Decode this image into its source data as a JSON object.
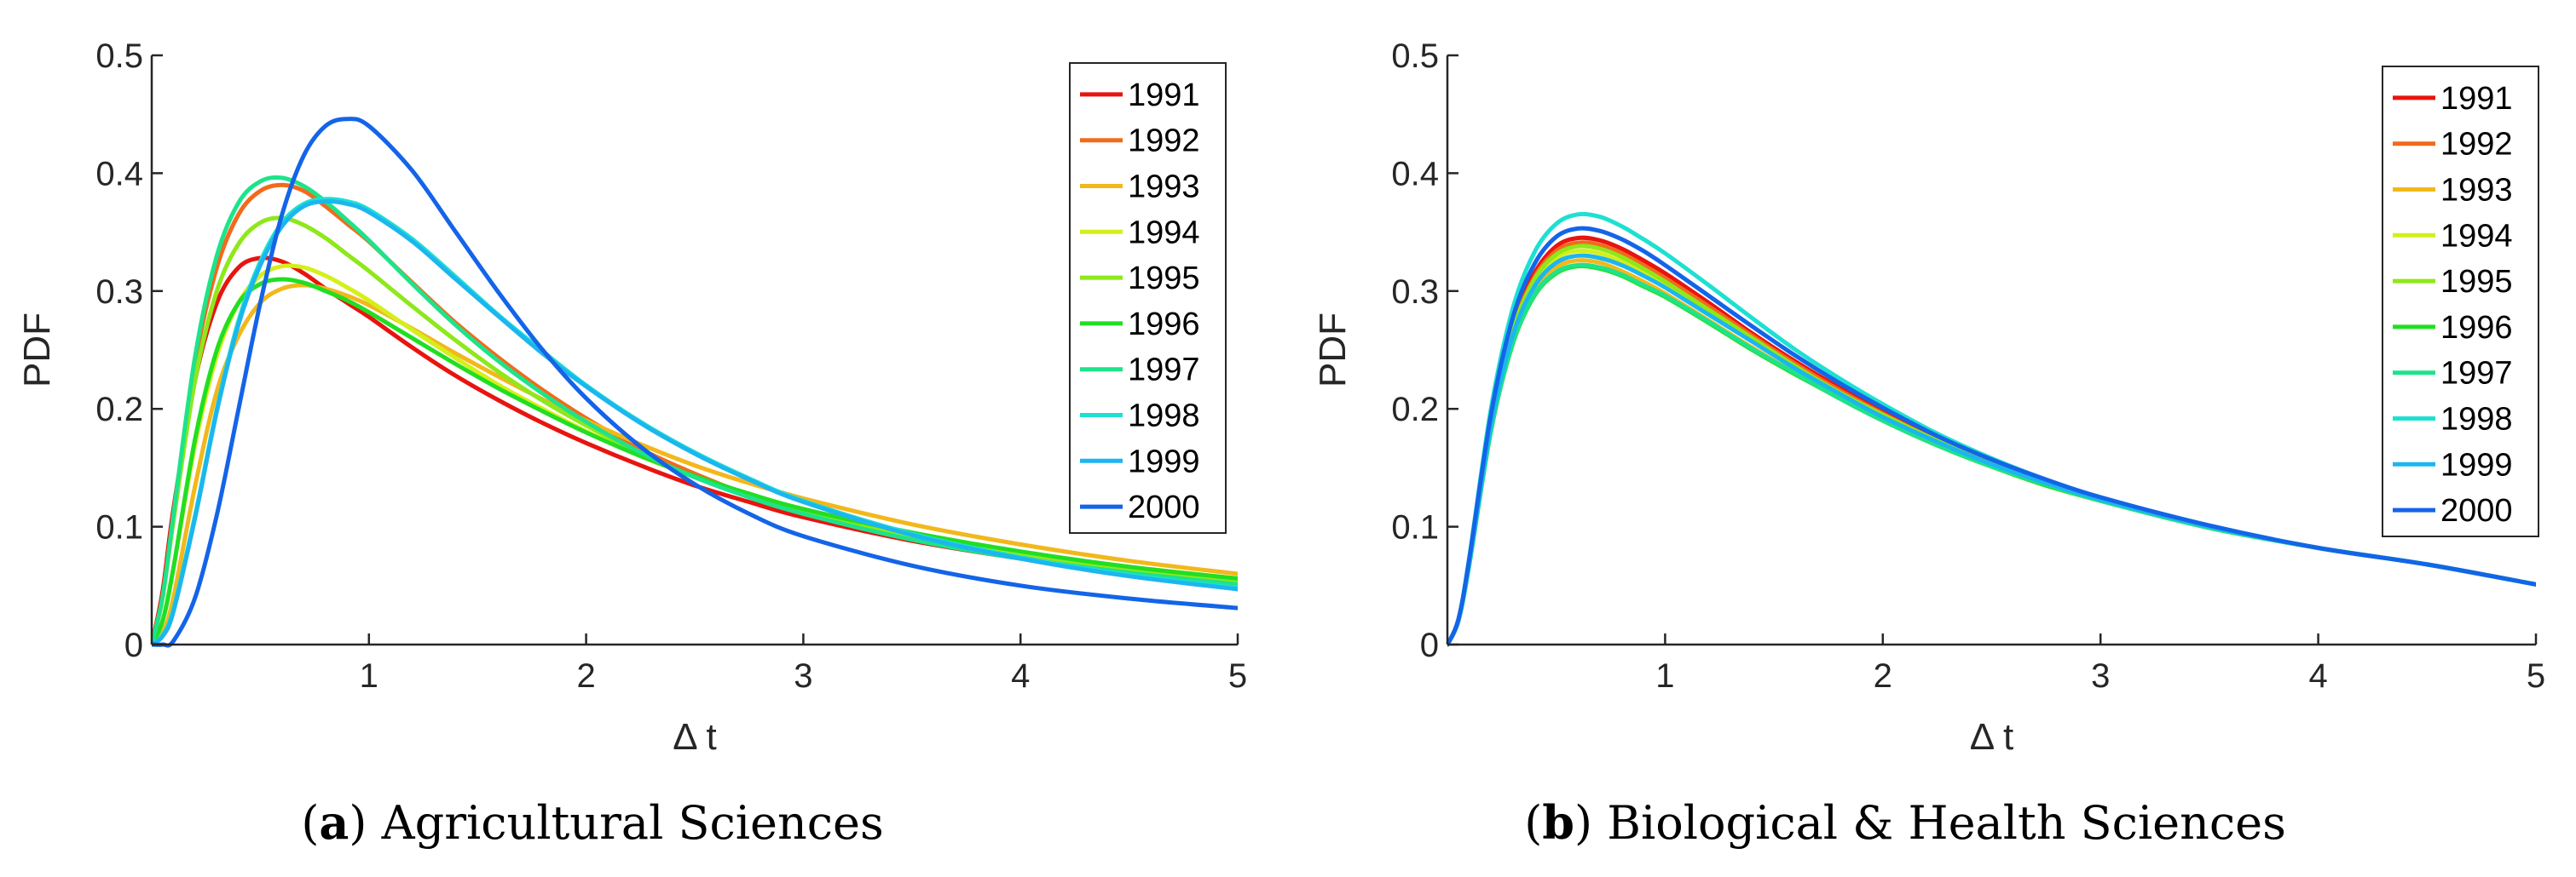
{
  "chart_data": [
    {
      "type": "line",
      "panel": "(a)",
      "title": "Agricultural Sciences",
      "xlabel": "Δ t",
      "ylabel": "PDF",
      "xlim": [
        0,
        5
      ],
      "ylim": [
        0,
        0.5
      ],
      "xticks": [
        1,
        2,
        3,
        4,
        5
      ],
      "xtick_labels": [
        "1",
        "2",
        "3",
        "4",
        "5"
      ],
      "yticks": [
        0,
        0.1,
        0.2,
        0.3,
        0.4,
        0.5
      ],
      "ytick_labels": [
        "0",
        "0.1",
        "0.2",
        "0.3",
        "0.4",
        "0.5"
      ],
      "legend_position": "top-right",
      "x": [
        0,
        0.05,
        0.1,
        0.2,
        0.3,
        0.4,
        0.5,
        0.6,
        0.7,
        0.8,
        0.9,
        1.0,
        1.2,
        1.4,
        1.6,
        1.8,
        2.0,
        2.25,
        2.5,
        2.75,
        3.0,
        3.5,
        4.0,
        4.5,
        5.0
      ],
      "series": [
        {
          "name": "1991",
          "color": "#e8140f",
          "values": [
            0,
            0.045,
            0.115,
            0.225,
            0.29,
            0.32,
            0.328,
            0.325,
            0.315,
            0.302,
            0.29,
            0.278,
            0.252,
            0.228,
            0.207,
            0.188,
            0.171,
            0.152,
            0.135,
            0.121,
            0.108,
            0.088,
            0.073,
            0.061,
            0.052
          ]
        },
        {
          "name": "1992",
          "color": "#f26a1b",
          "values": [
            0,
            0.04,
            0.11,
            0.24,
            0.32,
            0.365,
            0.385,
            0.39,
            0.385,
            0.372,
            0.357,
            0.342,
            0.307,
            0.273,
            0.243,
            0.216,
            0.192,
            0.166,
            0.145,
            0.127,
            0.113,
            0.091,
            0.075,
            0.063,
            0.053
          ]
        },
        {
          "name": "1993",
          "color": "#f2b81b",
          "values": [
            0,
            0.01,
            0.04,
            0.135,
            0.215,
            0.262,
            0.29,
            0.302,
            0.305,
            0.302,
            0.296,
            0.288,
            0.268,
            0.247,
            0.227,
            0.208,
            0.19,
            0.17,
            0.152,
            0.137,
            0.124,
            0.102,
            0.085,
            0.071,
            0.06
          ]
        },
        {
          "name": "1994",
          "color": "#d4ef1a",
          "values": [
            0,
            0.02,
            0.065,
            0.17,
            0.245,
            0.29,
            0.313,
            0.321,
            0.32,
            0.313,
            0.303,
            0.292,
            0.267,
            0.243,
            0.22,
            0.2,
            0.181,
            0.16,
            0.142,
            0.127,
            0.114,
            0.094,
            0.078,
            0.066,
            0.056
          ]
        },
        {
          "name": "1995",
          "color": "#8ee81a",
          "values": [
            0,
            0.04,
            0.105,
            0.225,
            0.3,
            0.34,
            0.358,
            0.362,
            0.356,
            0.345,
            0.331,
            0.317,
            0.287,
            0.258,
            0.231,
            0.207,
            0.186,
            0.162,
            0.142,
            0.126,
            0.112,
            0.091,
            0.075,
            0.063,
            0.053
          ]
        },
        {
          "name": "1996",
          "color": "#22de22",
          "values": [
            0,
            0.02,
            0.065,
            0.175,
            0.25,
            0.29,
            0.306,
            0.31,
            0.307,
            0.3,
            0.292,
            0.282,
            0.26,
            0.238,
            0.217,
            0.198,
            0.18,
            0.16,
            0.143,
            0.128,
            0.115,
            0.095,
            0.079,
            0.066,
            0.056
          ]
        },
        {
          "name": "1997",
          "color": "#1ee38a",
          "values": [
            0,
            0.04,
            0.11,
            0.245,
            0.33,
            0.375,
            0.393,
            0.396,
            0.389,
            0.376,
            0.36,
            0.343,
            0.306,
            0.271,
            0.24,
            0.213,
            0.189,
            0.163,
            0.142,
            0.125,
            0.111,
            0.089,
            0.073,
            0.061,
            0.051
          ]
        },
        {
          "name": "1998",
          "color": "#1ee0d2",
          "values": [
            0,
            0.008,
            0.03,
            0.11,
            0.2,
            0.275,
            0.325,
            0.358,
            0.374,
            0.378,
            0.376,
            0.369,
            0.344,
            0.312,
            0.279,
            0.249,
            0.22,
            0.189,
            0.163,
            0.141,
            0.122,
            0.094,
            0.074,
            0.059,
            0.048
          ]
        },
        {
          "name": "1999",
          "color": "#1cb6ef",
          "values": [
            0,
            0.007,
            0.028,
            0.108,
            0.198,
            0.272,
            0.322,
            0.355,
            0.372,
            0.376,
            0.374,
            0.367,
            0.342,
            0.31,
            0.278,
            0.247,
            0.219,
            0.188,
            0.162,
            0.14,
            0.121,
            0.093,
            0.073,
            0.058,
            0.047
          ]
        },
        {
          "name": "2000",
          "color": "#1464e8",
          "values": [
            0,
            0.0,
            0.003,
            0.04,
            0.11,
            0.2,
            0.29,
            0.365,
            0.415,
            0.44,
            0.446,
            0.44,
            0.402,
            0.35,
            0.298,
            0.25,
            0.209,
            0.168,
            0.136,
            0.111,
            0.092,
            0.067,
            0.05,
            0.039,
            0.031
          ]
        }
      ]
    },
    {
      "type": "line",
      "panel": "(b)",
      "title": "Biological & Health Sciences",
      "xlabel": "Δ t",
      "ylabel": "PDF",
      "xlim": [
        0,
        5
      ],
      "ylim": [
        0,
        0.5
      ],
      "xticks": [
        1,
        2,
        3,
        4,
        5
      ],
      "xtick_labels": [
        "1",
        "2",
        "3",
        "4",
        "5"
      ],
      "yticks": [
        0,
        0.1,
        0.2,
        0.3,
        0.4,
        0.5
      ],
      "ytick_labels": [
        "0",
        "0.1",
        "0.2",
        "0.3",
        "0.4",
        "0.5"
      ],
      "legend_position": "top-right",
      "x": [
        0,
        0.05,
        0.1,
        0.2,
        0.3,
        0.4,
        0.5,
        0.6,
        0.7,
        0.8,
        0.9,
        1.0,
        1.2,
        1.4,
        1.6,
        1.8,
        2.0,
        2.25,
        2.5,
        2.75,
        3.0,
        3.5,
        4.0,
        4.5,
        5.0
      ],
      "series": [
        {
          "name": "1991",
          "color": "#e8140f",
          "values": [
            0,
            0.02,
            0.07,
            0.19,
            0.27,
            0.315,
            0.338,
            0.345,
            0.343,
            0.336,
            0.326,
            0.315,
            0.29,
            0.264,
            0.24,
            0.218,
            0.198,
            0.175,
            0.155,
            0.139,
            0.124,
            0.1,
            0.082,
            0.068,
            0.051
          ]
        },
        {
          "name": "1992",
          "color": "#f26a1b",
          "values": [
            0,
            0.02,
            0.07,
            0.19,
            0.268,
            0.312,
            0.334,
            0.341,
            0.339,
            0.332,
            0.322,
            0.311,
            0.287,
            0.262,
            0.238,
            0.216,
            0.196,
            0.173,
            0.154,
            0.138,
            0.123,
            0.1,
            0.082,
            0.068,
            0.051
          ]
        },
        {
          "name": "1993",
          "color": "#f2b81b",
          "values": [
            0,
            0.02,
            0.068,
            0.183,
            0.258,
            0.3,
            0.32,
            0.326,
            0.324,
            0.317,
            0.308,
            0.298,
            0.275,
            0.252,
            0.23,
            0.209,
            0.19,
            0.169,
            0.151,
            0.135,
            0.122,
            0.099,
            0.082,
            0.068,
            0.051
          ]
        },
        {
          "name": "1994",
          "color": "#d4ef1a",
          "values": [
            0,
            0.02,
            0.069,
            0.187,
            0.264,
            0.307,
            0.328,
            0.334,
            0.332,
            0.325,
            0.316,
            0.305,
            0.282,
            0.258,
            0.235,
            0.213,
            0.194,
            0.172,
            0.153,
            0.137,
            0.122,
            0.1,
            0.082,
            0.068,
            0.051
          ]
        },
        {
          "name": "1995",
          "color": "#8ee81a",
          "values": [
            0,
            0.02,
            0.07,
            0.188,
            0.266,
            0.31,
            0.331,
            0.338,
            0.336,
            0.329,
            0.319,
            0.308,
            0.284,
            0.26,
            0.236,
            0.214,
            0.195,
            0.173,
            0.153,
            0.137,
            0.123,
            0.1,
            0.082,
            0.068,
            0.051
          ]
        },
        {
          "name": "1996",
          "color": "#22de22",
          "values": [
            0,
            0.02,
            0.067,
            0.181,
            0.255,
            0.296,
            0.315,
            0.321,
            0.319,
            0.313,
            0.304,
            0.295,
            0.273,
            0.25,
            0.229,
            0.209,
            0.19,
            0.169,
            0.151,
            0.135,
            0.122,
            0.099,
            0.082,
            0.068,
            0.051
          ]
        },
        {
          "name": "1997",
          "color": "#1ee38a",
          "values": [
            0,
            0.02,
            0.067,
            0.182,
            0.256,
            0.297,
            0.316,
            0.322,
            0.32,
            0.314,
            0.305,
            0.296,
            0.274,
            0.251,
            0.23,
            0.209,
            0.19,
            0.169,
            0.151,
            0.136,
            0.122,
            0.099,
            0.082,
            0.068,
            0.051
          ]
        },
        {
          "name": "1998",
          "color": "#1ee0d2",
          "values": [
            0,
            0.021,
            0.073,
            0.2,
            0.285,
            0.333,
            0.357,
            0.365,
            0.363,
            0.355,
            0.344,
            0.332,
            0.305,
            0.277,
            0.25,
            0.226,
            0.204,
            0.179,
            0.158,
            0.14,
            0.125,
            0.101,
            0.082,
            0.068,
            0.051
          ]
        },
        {
          "name": "1999",
          "color": "#1cb6ef",
          "values": [
            0,
            0.02,
            0.069,
            0.186,
            0.262,
            0.304,
            0.324,
            0.33,
            0.328,
            0.322,
            0.313,
            0.303,
            0.28,
            0.257,
            0.234,
            0.213,
            0.193,
            0.172,
            0.153,
            0.137,
            0.123,
            0.1,
            0.082,
            0.068,
            0.051
          ]
        },
        {
          "name": "2000",
          "color": "#1464e8",
          "values": [
            0,
            0.021,
            0.072,
            0.195,
            0.277,
            0.323,
            0.346,
            0.353,
            0.351,
            0.344,
            0.334,
            0.322,
            0.296,
            0.27,
            0.245,
            0.222,
            0.201,
            0.177,
            0.157,
            0.14,
            0.125,
            0.101,
            0.082,
            0.068,
            0.051
          ]
        }
      ]
    }
  ],
  "captions": [
    {
      "letter": "a",
      "text": " Agricultural Sciences"
    },
    {
      "letter": "b",
      "text": " Biological & Health Sciences"
    }
  ]
}
